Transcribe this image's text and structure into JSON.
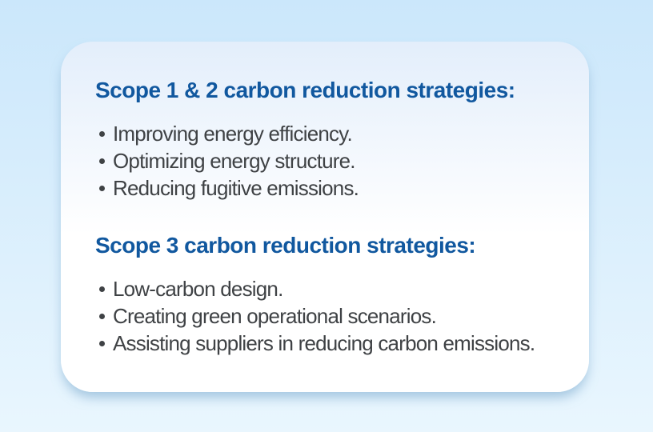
{
  "colors": {
    "background_top": "#cbe7fb",
    "background_bottom": "#e9f6fe",
    "card_tint_top": "#e3eefb",
    "card_background": "#ffffff",
    "heading": "#11589f",
    "body_text": "#3f4245"
  },
  "icons": {
    "bullet": "round-dot"
  },
  "card": {
    "sections": [
      {
        "title": "Scope 1 & 2 carbon reduction strategies:",
        "items": [
          "Improving energy efficiency.",
          "Optimizing energy structure.",
          "Reducing fugitive emissions."
        ]
      },
      {
        "title": "Scope 3 carbon reduction strategies:",
        "items": [
          "Low-carbon design.",
          "Creating green operational scenarios.",
          "Assisting suppliers in reducing carbon emissions."
        ]
      }
    ]
  }
}
